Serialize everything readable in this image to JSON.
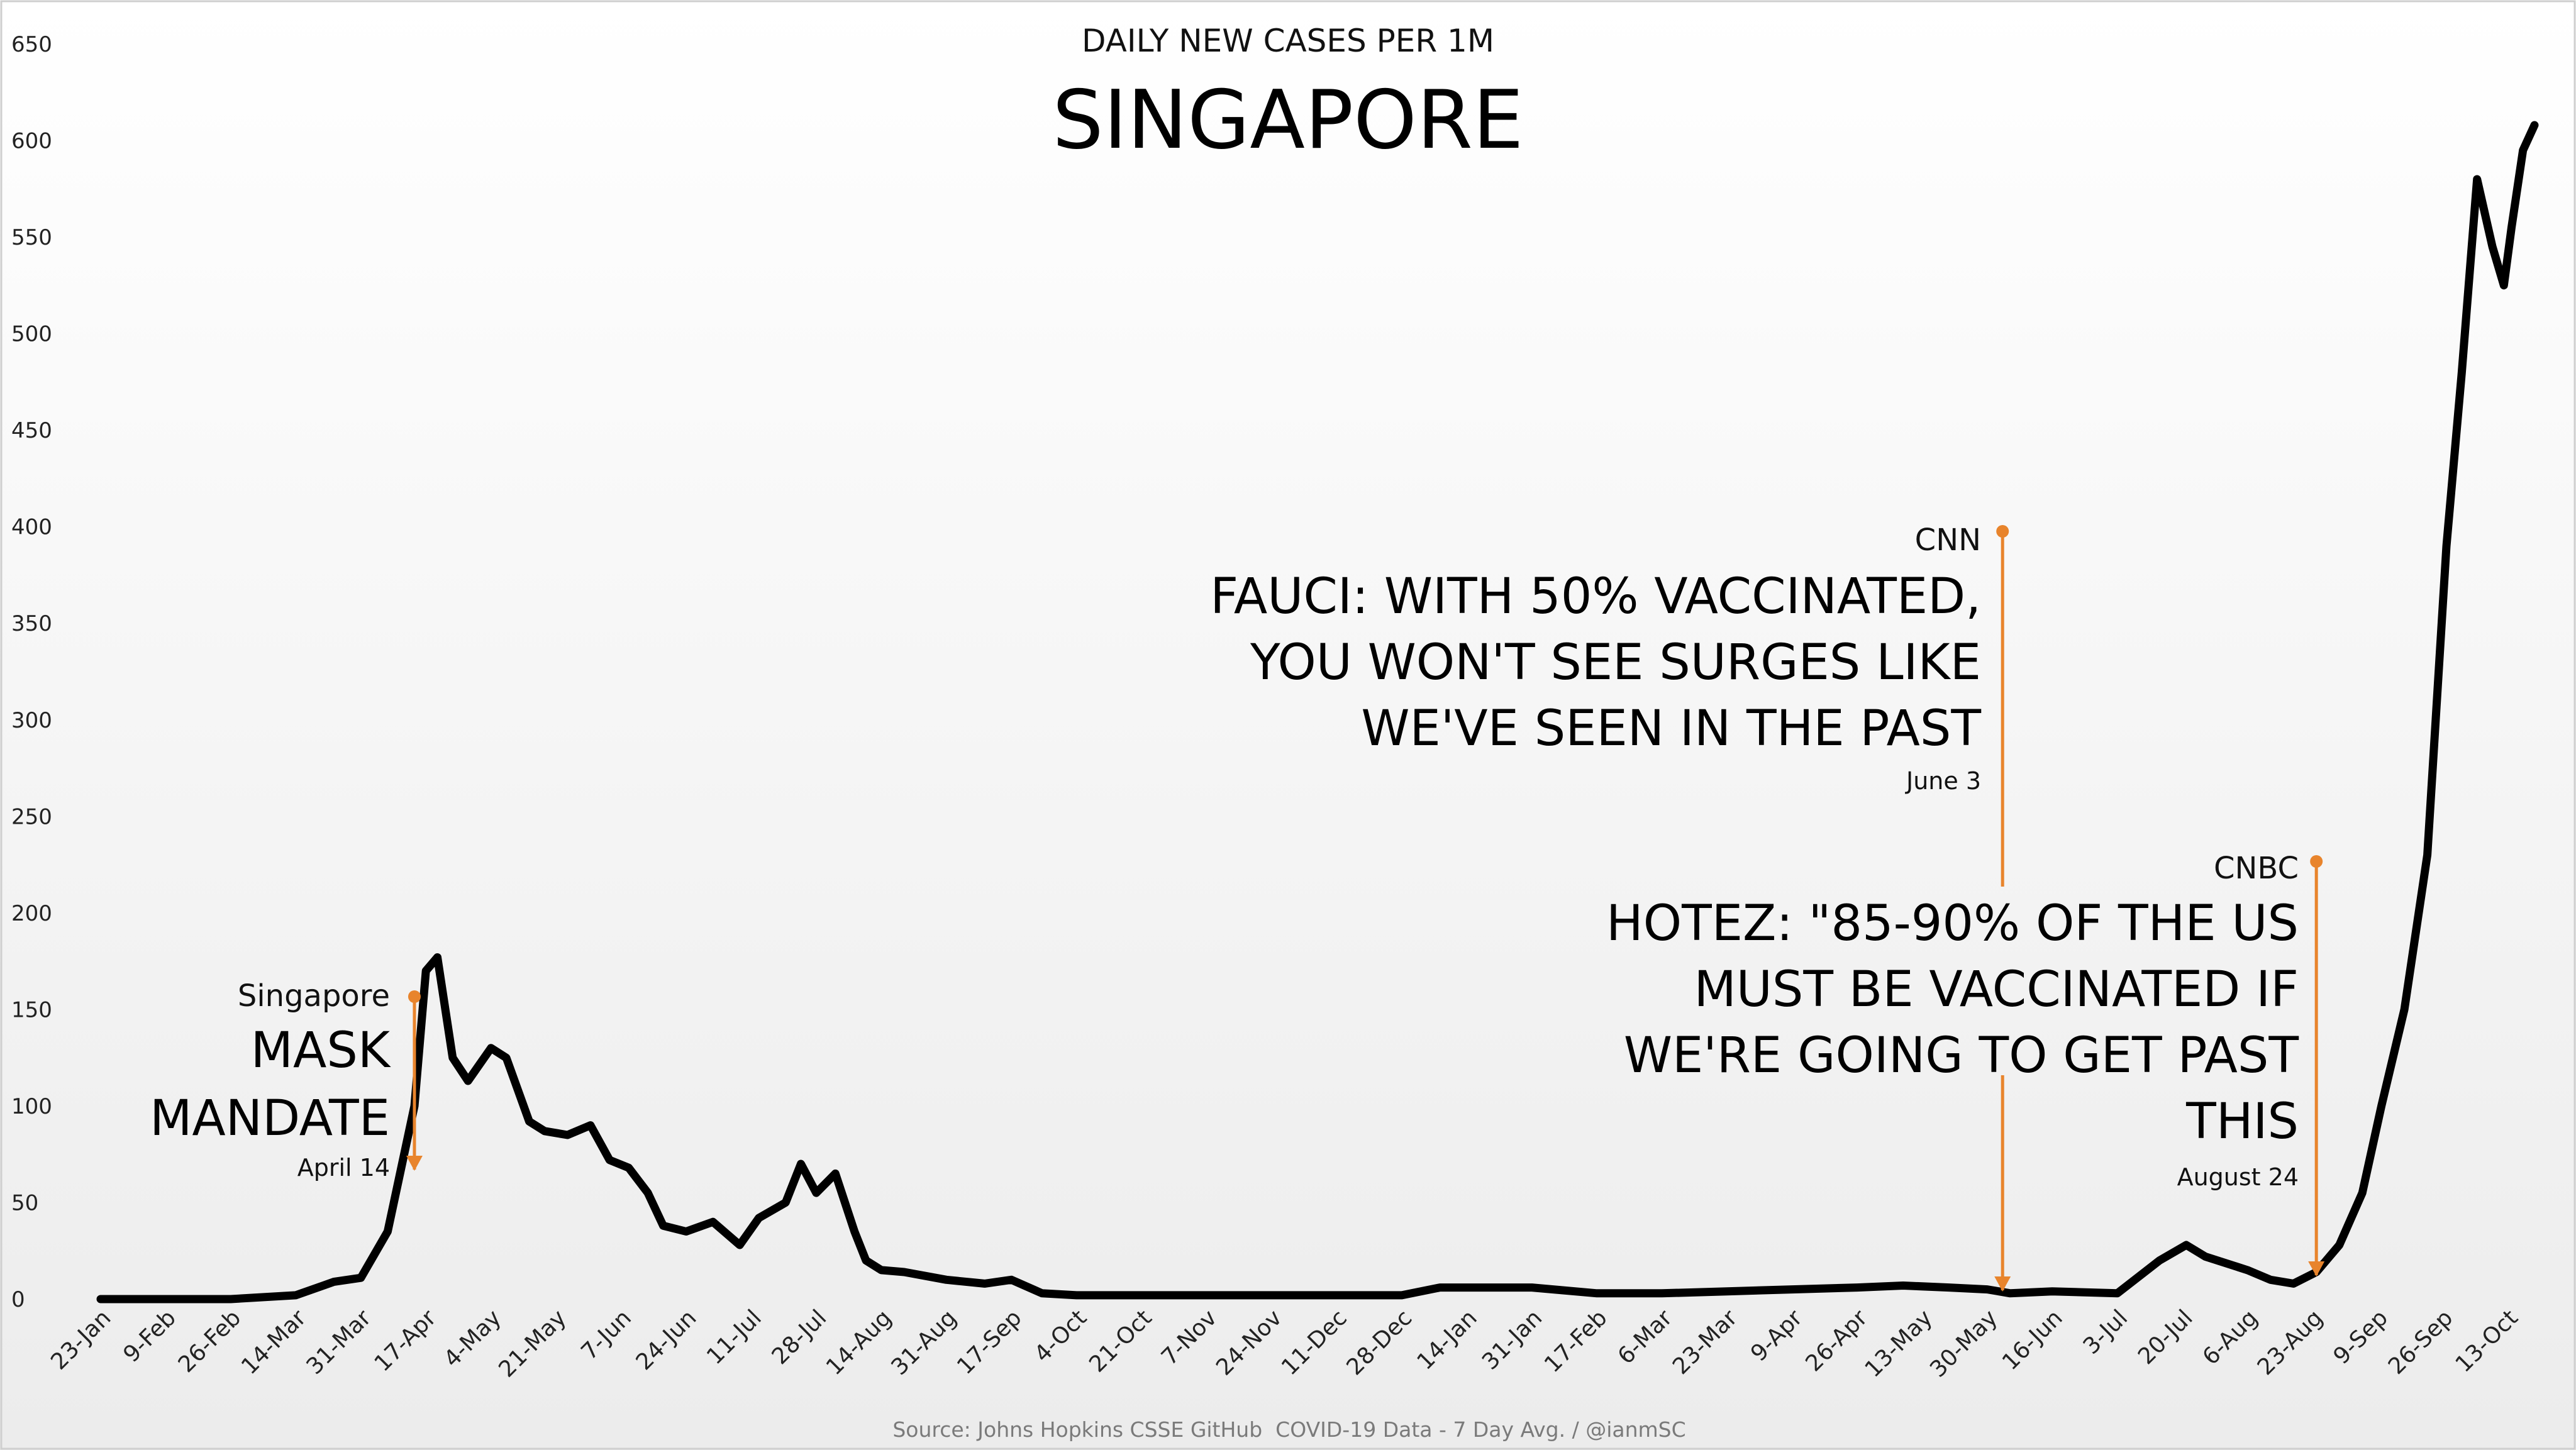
{
  "chart_data": {
    "type": "line",
    "subtitle": "DAILY NEW CASES PER 1M",
    "title": "SINGAPORE",
    "xlabel": "",
    "ylabel": "",
    "ylim": [
      0,
      650
    ],
    "yticks": [
      0,
      50,
      100,
      150,
      200,
      250,
      300,
      350,
      400,
      450,
      500,
      550,
      600,
      650
    ],
    "x_start": "2020-01-23",
    "x_end": "2021-10-20",
    "x_ticks": [
      "23-Jan",
      "9-Feb",
      "26-Feb",
      "14-Mar",
      "31-Mar",
      "17-Apr",
      "4-May",
      "21-May",
      "7-Jun",
      "24-Jun",
      "11-Jul",
      "28-Jul",
      "14-Aug",
      "31-Aug",
      "17-Sep",
      "4-Oct",
      "21-Oct",
      "7-Nov",
      "24-Nov",
      "11-Dec",
      "28-Dec",
      "14-Jan",
      "31-Jan",
      "17-Feb",
      "6-Mar",
      "23-Mar",
      "9-Apr",
      "26-Apr",
      "13-May",
      "30-May",
      "16-Jun",
      "3-Jul",
      "20-Jul",
      "6-Aug",
      "23-Aug",
      "9-Sep",
      "26-Sep",
      "13-Oct"
    ],
    "series": [
      {
        "name": "",
        "color": "#000000",
        "x": [
          "2020-01-23",
          "2020-02-09",
          "2020-02-26",
          "2020-03-14",
          "2020-03-24",
          "2020-03-31",
          "2020-04-07",
          "2020-04-14",
          "2020-04-17",
          "2020-04-20",
          "2020-04-24",
          "2020-04-28",
          "2020-05-04",
          "2020-05-08",
          "2020-05-14",
          "2020-05-18",
          "2020-05-24",
          "2020-05-30",
          "2020-06-04",
          "2020-06-09",
          "2020-06-14",
          "2020-06-18",
          "2020-06-24",
          "2020-07-01",
          "2020-07-08",
          "2020-07-13",
          "2020-07-20",
          "2020-07-24",
          "2020-07-28",
          "2020-08-02",
          "2020-08-07",
          "2020-08-10",
          "2020-08-14",
          "2020-08-20",
          "2020-08-31",
          "2020-09-10",
          "2020-09-17",
          "2020-09-25",
          "2020-10-04",
          "2020-11-07",
          "2020-12-11",
          "2020-12-28",
          "2021-01-07",
          "2021-01-31",
          "2021-02-17",
          "2021-03-06",
          "2021-03-23",
          "2021-04-09",
          "2021-04-26",
          "2021-05-08",
          "2021-05-20",
          "2021-05-30",
          "2021-06-05",
          "2021-06-16",
          "2021-07-03",
          "2021-07-14",
          "2021-07-21",
          "2021-07-26",
          "2021-08-06",
          "2021-08-12",
          "2021-08-18",
          "2021-08-24",
          "2021-08-30",
          "2021-09-05",
          "2021-09-10",
          "2021-09-16",
          "2021-09-22",
          "2021-09-27",
          "2021-10-01",
          "2021-10-05",
          "2021-10-09",
          "2021-10-12",
          "2021-10-14",
          "2021-10-17",
          "2021-10-20"
        ],
        "y": [
          0,
          0,
          0,
          2,
          9,
          11,
          35,
          100,
          170,
          177,
          125,
          113,
          130,
          125,
          92,
          87,
          85,
          90,
          72,
          68,
          55,
          38,
          35,
          40,
          28,
          42,
          50,
          70,
          55,
          65,
          35,
          20,
          15,
          14,
          10,
          8,
          10,
          3,
          2,
          2,
          2,
          2,
          6,
          6,
          3,
          3,
          4,
          5,
          6,
          7,
          6,
          5,
          3,
          4,
          3,
          20,
          28,
          22,
          15,
          10,
          8,
          14,
          28,
          55,
          100,
          150,
          230,
          390,
          480,
          580,
          545,
          525,
          555,
          595,
          608
        ]
      }
    ],
    "annotations": [
      {
        "source": "Singapore",
        "headline": [
          "MASK",
          "MANDATE"
        ],
        "date_label": "April 14",
        "event_date": "2020-04-14",
        "color": "#e8842c"
      },
      {
        "source": "CNN",
        "headline": [
          "FAUCI: WITH 50% VACCINATED,",
          "YOU WON'T SEE SURGES LIKE",
          "WE'VE SEEN IN THE PAST"
        ],
        "date_label": "June 3",
        "event_date": "2021-06-03",
        "color": "#e8842c"
      },
      {
        "source": "CNBC",
        "headline": [
          "HOTEZ: \"85-90% OF THE US",
          "MUST BE VACCINATED IF",
          "WE'RE GOING TO GET PAST",
          "THIS"
        ],
        "date_label": "August 24",
        "event_date": "2021-08-24",
        "color": "#e8842c"
      }
    ],
    "source_note": "Source: Johns Hopkins CSSE GitHub  COVID-19 Data - 7 Day Avg. / @ianmSC",
    "grid": false,
    "legend": "none",
    "background": "#f4f4f4"
  }
}
